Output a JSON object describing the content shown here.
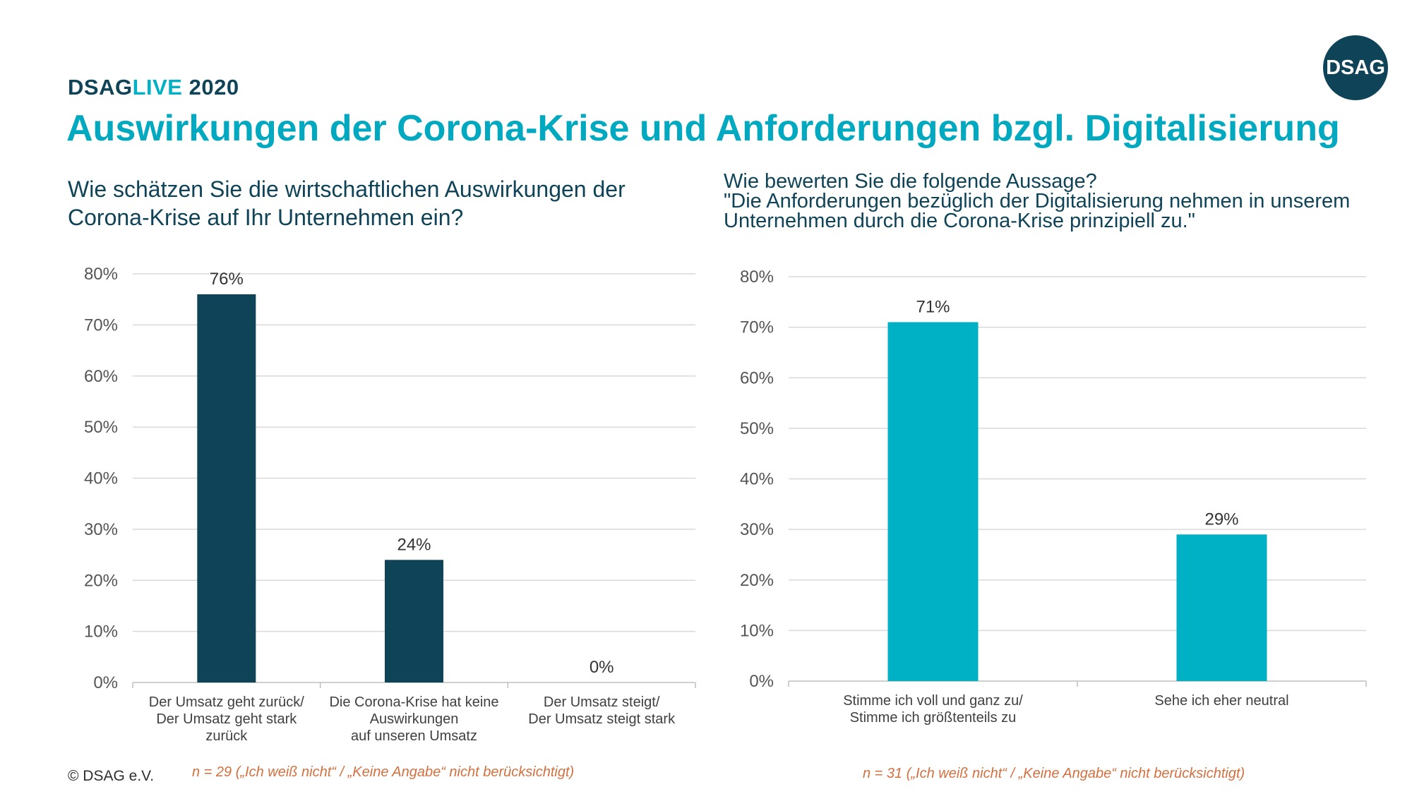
{
  "header": {
    "brand_prefix": "DSAG",
    "brand_live": "LIVE",
    "brand_year": " 2020",
    "logo_text": "DSAG",
    "title": "Auswirkungen der Corona-Krise und Anforderungen bzgl. Digitalisierung"
  },
  "left": {
    "question": "Wie schätzen Sie die wirtschaftlichen Auswirkungen der Corona-Krise auf Ihr Unternehmen ein?",
    "footnote": "n = 29 („Ich weiß nicht“ / „Keine Angabe“ nicht berücksichtigt)"
  },
  "right": {
    "question_line1": "Wie bewerten Sie die folgende Aussage?",
    "question_line2": "\"Die Anforderungen bezüglich der Digitalisierung nehmen in unserem",
    "question_line3": "Unternehmen durch die Corona-Krise prinzipiell zu.\"",
    "footnote": "n = 31 („Ich weiß nicht“ / „Keine Angabe“ nicht berücksichtigt)"
  },
  "footer": {
    "copyright": "© DSAG e.V."
  },
  "colors": {
    "dark_teal": "#0f4358",
    "cyan": "#00b0c4",
    "accent_orange": "#d4703f",
    "grid": "#d9d9d9"
  },
  "chart_data": [
    {
      "type": "bar",
      "categories": [
        [
          "Der Umsatz geht zurück/",
          "Der Umsatz geht stark",
          "zurück"
        ],
        [
          "Die Corona-Krise hat keine",
          "Auswirkungen",
          "auf unseren Umsatz"
        ],
        [
          "Der Umsatz steigt/",
          "Der Umsatz steigt stark"
        ]
      ],
      "values": [
        76,
        24,
        0
      ],
      "data_labels": [
        "76%",
        "24%",
        "0%"
      ],
      "ylim": [
        0,
        80
      ],
      "yticks": [
        0,
        10,
        20,
        30,
        40,
        50,
        60,
        70,
        80
      ],
      "ytick_labels": [
        "0%",
        "10%",
        "20%",
        "30%",
        "40%",
        "50%",
        "60%",
        "70%",
        "80%"
      ],
      "grid": true,
      "color": "#0f4358"
    },
    {
      "type": "bar",
      "categories": [
        [
          "Stimme ich voll und ganz zu/",
          "Stimme ich größtenteils zu"
        ],
        [
          "Sehe ich eher neutral"
        ]
      ],
      "values": [
        71,
        29
      ],
      "data_labels": [
        "71%",
        "29%"
      ],
      "ylim": [
        0,
        80
      ],
      "yticks": [
        0,
        10,
        20,
        30,
        40,
        50,
        60,
        70,
        80
      ],
      "ytick_labels": [
        "0%",
        "10%",
        "20%",
        "30%",
        "40%",
        "50%",
        "60%",
        "70%",
        "80%"
      ],
      "grid": true,
      "color": "#00b0c4"
    }
  ]
}
